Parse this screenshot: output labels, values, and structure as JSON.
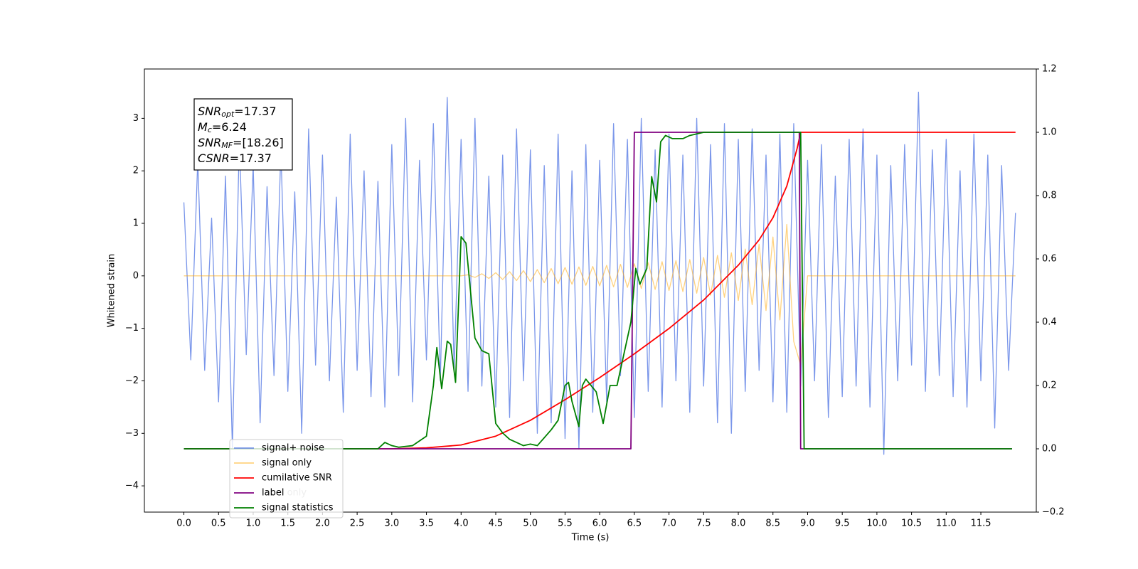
{
  "chart_data": {
    "type": "line",
    "xlabel": "Time (s)",
    "ylabel": "Whitened strain",
    "xlim": [
      -0.57,
      12.3
    ],
    "ylim": [
      -4.5,
      3.94
    ],
    "y2lim": [
      -0.2,
      1.2
    ],
    "xticks": [
      {
        "value": 0,
        "label": "0.0"
      },
      0.5,
      {
        "value": 1,
        "label": "1.0"
      },
      1.5,
      {
        "value": 2,
        "label": "2.0"
      },
      2.5,
      {
        "value": 3,
        "label": "3.0"
      },
      3.5,
      {
        "value": 4,
        "label": "4.0"
      },
      4.5,
      {
        "value": 5,
        "label": "5.0"
      },
      5.5,
      {
        "value": 6,
        "label": "6.0"
      },
      6.5,
      {
        "value": 7,
        "label": "7.0"
      },
      7.5,
      {
        "value": 8,
        "label": "8.0"
      },
      8.5,
      {
        "value": 9,
        "label": "9.0"
      },
      9.5,
      {
        "value": 10,
        "label": "10.0"
      },
      10.5,
      {
        "value": 11,
        "label": "11.0"
      },
      11.5
    ],
    "yticks": [
      {
        "value": -4,
        "label": "−4"
      },
      {
        "value": -3,
        "label": "−3"
      },
      {
        "value": -2,
        "label": "−2"
      },
      {
        "value": -1,
        "label": "−1"
      },
      0,
      1,
      2,
      3
    ],
    "y2ticks": [
      {
        "value": -0.2,
        "label": "−0.2"
      },
      {
        "value": 0,
        "label": "0.0"
      },
      0.2,
      0.4,
      0.6,
      0.8,
      {
        "value": 1,
        "label": "1.0"
      },
      1.2
    ],
    "legend": "lower left",
    "annotation": [
      {
        "symbol": "SNR",
        "sub": "opt",
        "text": "=17.37"
      },
      {
        "symbol": "M",
        "sub": "c",
        "text": "=6.24"
      },
      {
        "symbol": "SNR",
        "sub": "MF",
        "text": "=[18.26]"
      },
      {
        "symbol": "CSNR",
        "text": "=17.37"
      }
    ],
    "hidden_legend_text": "label only",
    "x": [
      0,
      0.1,
      0.2,
      0.3,
      0.4,
      0.5,
      0.6,
      0.7,
      0.8,
      0.9,
      1,
      1.1,
      1.2,
      1.3,
      1.4,
      1.5,
      1.6,
      1.7,
      1.8,
      1.9,
      2,
      2.1,
      2.2,
      2.3,
      2.4,
      2.5,
      2.6,
      2.7,
      2.8,
      2.9,
      3,
      3.1,
      3.2,
      3.3,
      3.4,
      3.5,
      3.6,
      3.7,
      3.8,
      3.9,
      4,
      4.1,
      4.2,
      4.3,
      4.4,
      4.5,
      4.6,
      4.7,
      4.8,
      4.9,
      5,
      5.1,
      5.2,
      5.3,
      5.4,
      5.5,
      5.6,
      5.7,
      5.8,
      5.9,
      6,
      6.1,
      6.2,
      6.3,
      6.4,
      6.5,
      6.6,
      6.7,
      6.8,
      6.9,
      7,
      7.1,
      7.2,
      7.3,
      7.4,
      7.5,
      7.6,
      7.7,
      7.8,
      7.9,
      8,
      8.1,
      8.2,
      8.3,
      8.4,
      8.5,
      8.6,
      8.7,
      8.8,
      8.9,
      9,
      9.1,
      9.2,
      9.3,
      9.4,
      9.5,
      9.6,
      9.7,
      9.8,
      9.9,
      10,
      10.1,
      10.2,
      10.3,
      10.4,
      10.5,
      10.6,
      10.7,
      10.8,
      10.9,
      11,
      11.1,
      11.2,
      11.3,
      11.4,
      11.5,
      11.6,
      11.7,
      11.8,
      11.9,
      12
    ],
    "series": [
      {
        "name": "signal+ noise",
        "color": "#4169e1",
        "alpha": 0.7,
        "values": [
          1.4,
          -1.6,
          2.2,
          -1.8,
          1.1,
          -2.4,
          1.9,
          -3.3,
          2.6,
          -1.5,
          2.1,
          -2.8,
          1.7,
          -1.9,
          2.4,
          -2.2,
          1.6,
          -3.0,
          2.8,
          -1.7,
          2.3,
          -2.0,
          1.5,
          -2.6,
          2.7,
          -1.8,
          2.0,
          -2.3,
          1.8,
          -2.5,
          2.5,
          -1.9,
          3.0,
          -2.4,
          2.2,
          -1.6,
          2.9,
          -2.0,
          3.4,
          -1.8,
          2.6,
          -2.2,
          3.0,
          -2.1,
          1.9,
          -2.5,
          2.3,
          -2.7,
          2.8,
          -2.0,
          2.4,
          -3.0,
          2.1,
          -2.8,
          2.7,
          -3.1,
          2.0,
          -3.3,
          2.5,
          -2.6,
          2.2,
          -2.4,
          2.9,
          -1.9,
          2.6,
          -2.7,
          3.0,
          -2.2,
          2.4,
          -2.5,
          2.7,
          -2.0,
          2.3,
          -2.6,
          3.0,
          -2.1,
          2.5,
          -2.8,
          2.9,
          -3.0,
          2.6,
          -2.2,
          2.8,
          -1.8,
          2.3,
          -2.4,
          2.7,
          -2.6,
          2.9,
          -2.1,
          2.2,
          -2.0,
          2.5,
          -2.7,
          1.9,
          -2.3,
          2.6,
          -2.1,
          2.8,
          -2.5,
          2.3,
          -3.4,
          2.1,
          -2.0,
          2.5,
          -1.7,
          3.5,
          -2.2,
          2.4,
          -1.9,
          2.6,
          -2.3,
          2.0,
          -2.5,
          2.7,
          -2.0,
          2.3,
          -2.9,
          2.1,
          -1.8,
          1.2
        ]
      },
      {
        "name": "signal only",
        "color": "#ffa500",
        "alpha": 0.5,
        "values": [
          0,
          0,
          0,
          0,
          0,
          0,
          0,
          0,
          0,
          0,
          0,
          0,
          0,
          0,
          0,
          0,
          0,
          0,
          0,
          0,
          0,
          0,
          0,
          0,
          0,
          0,
          0,
          0,
          0,
          0,
          0,
          0,
          0,
          0,
          0,
          0,
          0,
          0,
          0,
          0,
          0,
          0.02,
          -0.03,
          0.04,
          -0.05,
          0.06,
          -0.07,
          0.08,
          -0.09,
          0.1,
          -0.11,
          0.12,
          -0.13,
          0.14,
          -0.15,
          0.16,
          -0.16,
          0.17,
          -0.18,
          0.18,
          -0.19,
          0.2,
          -0.21,
          0.22,
          -0.22,
          0.23,
          -0.24,
          0.25,
          -0.26,
          0.27,
          -0.28,
          0.29,
          -0.3,
          0.31,
          -0.33,
          0.35,
          -0.37,
          0.39,
          -0.41,
          0.44,
          -0.47,
          0.51,
          -0.55,
          0.6,
          -0.66,
          0.74,
          -0.84,
          0.98,
          -1.25,
          -1.7,
          0,
          0,
          0,
          0,
          0,
          0,
          0,
          0,
          0,
          0,
          0,
          0,
          0,
          0,
          0,
          0,
          0,
          0,
          0,
          0,
          0,
          0,
          0,
          0,
          0,
          0,
          0,
          0,
          0,
          0,
          0
        ]
      },
      {
        "name": "cumilative SNR",
        "color": "#ff0000",
        "axis": "y2",
        "x": [
          0,
          3.0,
          3.5,
          4.0,
          4.5,
          5.0,
          5.5,
          6.0,
          6.5,
          7.0,
          7.5,
          8.0,
          8.3,
          8.5,
          8.7,
          8.8,
          8.85,
          8.9,
          12
        ],
        "values": [
          0,
          0,
          0.003,
          0.012,
          0.04,
          0.09,
          0.155,
          0.225,
          0.3,
          0.38,
          0.47,
          0.58,
          0.66,
          0.73,
          0.83,
          0.91,
          0.95,
          1,
          1
        ]
      },
      {
        "name": "label",
        "color": "#800080",
        "axis": "y2",
        "x": [
          0,
          6.45,
          6.5,
          8.88,
          8.9,
          11.95
        ],
        "values": [
          0,
          0,
          1,
          1,
          0,
          0
        ]
      },
      {
        "name": "signal statistics",
        "color": "#008000",
        "axis": "y2",
        "x": [
          0,
          2.8,
          2.9,
          3.0,
          3.1,
          3.3,
          3.5,
          3.6,
          3.65,
          3.72,
          3.8,
          3.85,
          3.92,
          4.0,
          4.07,
          4.2,
          4.3,
          4.4,
          4.5,
          4.6,
          4.7,
          4.8,
          4.9,
          5.0,
          5.1,
          5.3,
          5.4,
          5.5,
          5.55,
          5.6,
          5.7,
          5.75,
          5.8,
          5.95,
          6.05,
          6.15,
          6.25,
          6.35,
          6.45,
          6.52,
          6.58,
          6.68,
          6.75,
          6.82,
          6.88,
          6.95,
          7.05,
          7.2,
          7.3,
          7.5,
          8.9,
          8.95,
          11.95
        ],
        "values": [
          0,
          0,
          0.02,
          0.01,
          0.005,
          0.01,
          0.04,
          0.2,
          0.32,
          0.19,
          0.34,
          0.33,
          0.21,
          0.67,
          0.65,
          0.35,
          0.31,
          0.3,
          0.08,
          0.05,
          0.03,
          0.02,
          0.01,
          0.015,
          0.01,
          0.06,
          0.09,
          0.2,
          0.21,
          0.15,
          0.07,
          0.2,
          0.22,
          0.18,
          0.08,
          0.2,
          0.2,
          0.3,
          0.4,
          0.57,
          0.52,
          0.57,
          0.86,
          0.78,
          0.97,
          0.99,
          0.98,
          0.98,
          0.99,
          1,
          1,
          0,
          0
        ]
      }
    ]
  }
}
